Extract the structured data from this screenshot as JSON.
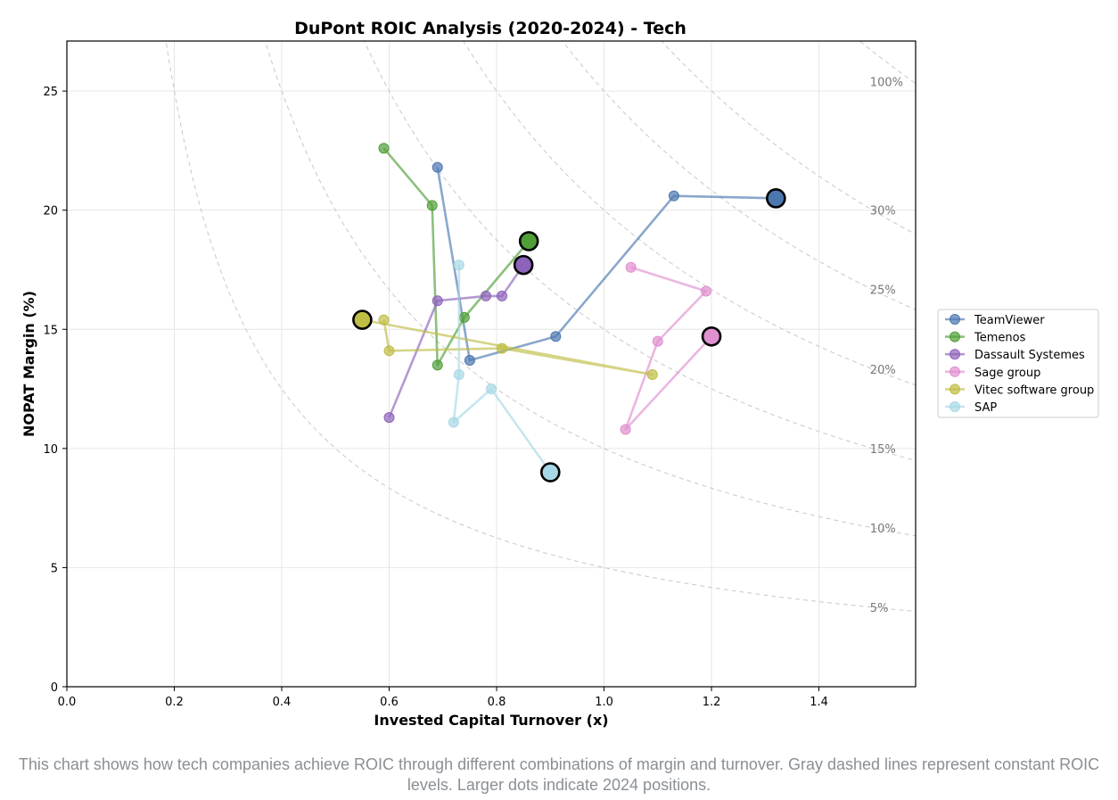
{
  "caption": "This chart shows how tech companies achieve ROIC through different combinations of margin and turnover. Gray dashed lines represent constant ROIC levels. Larger dots indicate 2024 positions.",
  "chart_data": {
    "type": "scatter",
    "title": "DuPont ROIC Analysis (2020-2024) - Tech",
    "xlabel": "Invested Capital Turnover (x)",
    "ylabel": "NOPAT Margin (%)",
    "xlim": [
      0,
      1.58
    ],
    "ylim": [
      0,
      27.1
    ],
    "xticks": [
      0.0,
      0.2,
      0.4,
      0.6,
      0.8,
      1.0,
      1.2,
      1.4
    ],
    "xtick_labels": [
      "0.0",
      "0.2",
      "0.4",
      "0.6",
      "0.8",
      "1.0",
      "1.2",
      "1.4"
    ],
    "yticks": [
      0,
      5,
      10,
      15,
      20,
      25
    ],
    "ytick_labels": [
      "0",
      "5",
      "10",
      "15",
      "20",
      "25"
    ],
    "grid": true,
    "legend_position": "right",
    "iso_roic_lines": [
      {
        "roic": 5,
        "label": "5%"
      },
      {
        "roic": 10,
        "label": "10%"
      },
      {
        "roic": 15,
        "label": "15%"
      },
      {
        "roic": 20,
        "label": "20%"
      },
      {
        "roic": 25,
        "label": "25%"
      },
      {
        "roic": 30,
        "label": "30%"
      },
      {
        "roic": 40,
        "label": ""
      },
      {
        "roic": 100,
        "label": "100%"
      }
    ],
    "series": [
      {
        "name": "TeamViewer",
        "color": "#4c78b0",
        "x": [
          0.69,
          0.75,
          0.91,
          1.13,
          1.32
        ],
        "y": [
          21.8,
          13.7,
          14.7,
          20.6,
          20.5
        ]
      },
      {
        "name": "Temenos",
        "color": "#4f9e38",
        "x": [
          0.59,
          0.68,
          0.69,
          0.74,
          0.86
        ],
        "y": [
          22.6,
          20.2,
          13.5,
          15.5,
          18.7
        ]
      },
      {
        "name": "Dassault Systemes",
        "color": "#8e63bb",
        "x": [
          0.6,
          0.69,
          0.78,
          0.81,
          0.85
        ],
        "y": [
          11.3,
          16.2,
          16.4,
          16.4,
          17.7
        ]
      },
      {
        "name": "Sage group",
        "color": "#e08fd0",
        "x": [
          1.05,
          1.19,
          1.1,
          1.04,
          1.2
        ],
        "y": [
          17.6,
          16.6,
          14.5,
          10.8,
          14.7
        ]
      },
      {
        "name": "Vitec software group",
        "color": "#bfbd45",
        "x": [
          0.59,
          0.6,
          0.81,
          1.09,
          0.55
        ],
        "y": [
          15.4,
          14.1,
          14.2,
          13.1,
          15.4
        ]
      },
      {
        "name": "SAP",
        "color": "#a8d8e6",
        "x": [
          0.73,
          0.73,
          0.72,
          0.79,
          0.9
        ],
        "y": [
          17.7,
          13.1,
          11.1,
          12.5,
          9.0
        ]
      }
    ]
  }
}
